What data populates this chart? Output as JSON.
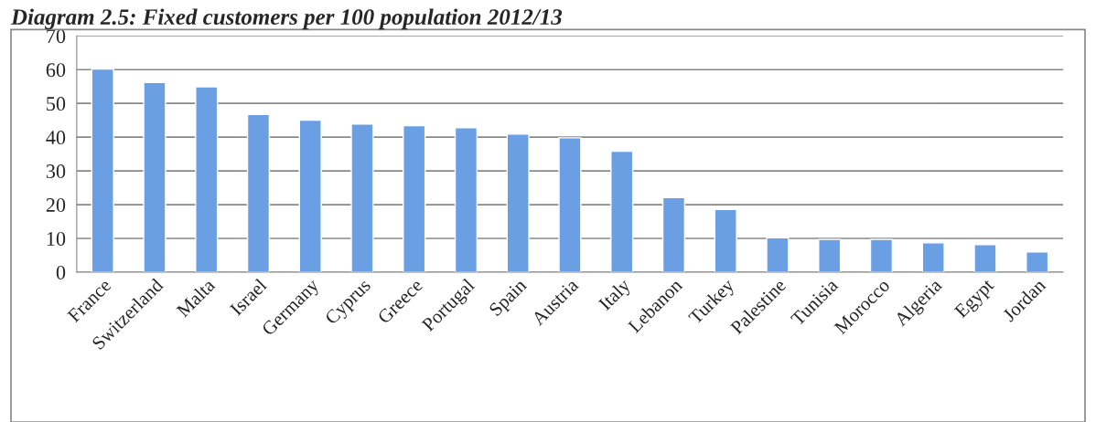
{
  "chart_data": {
    "type": "bar",
    "title": "Diagram 2.5: Fixed customers per 100 population 2012/13",
    "categories": [
      "France",
      "Switzerland",
      "Malta",
      "Israel",
      "Germany",
      "Cyprus",
      "Greece",
      "Portugal",
      "Spain",
      "Austria",
      "Italy",
      "Lebanon",
      "Turkey",
      "Palestine",
      "Tunisia",
      "Morocco",
      "Algeria",
      "Egypt",
      "Jordan"
    ],
    "values": [
      60.2,
      56.2,
      54.9,
      46.7,
      45.0,
      43.9,
      43.4,
      42.8,
      40.9,
      39.8,
      35.8,
      22.1,
      18.6,
      10.2,
      9.7,
      9.7,
      8.7,
      8.2,
      6.0
    ],
    "color": "#6b9fe4",
    "ylim": [
      0,
      70
    ],
    "yticks": [
      0,
      10,
      20,
      30,
      40,
      50,
      60,
      70
    ],
    "grid": "y",
    "legend": false
  }
}
